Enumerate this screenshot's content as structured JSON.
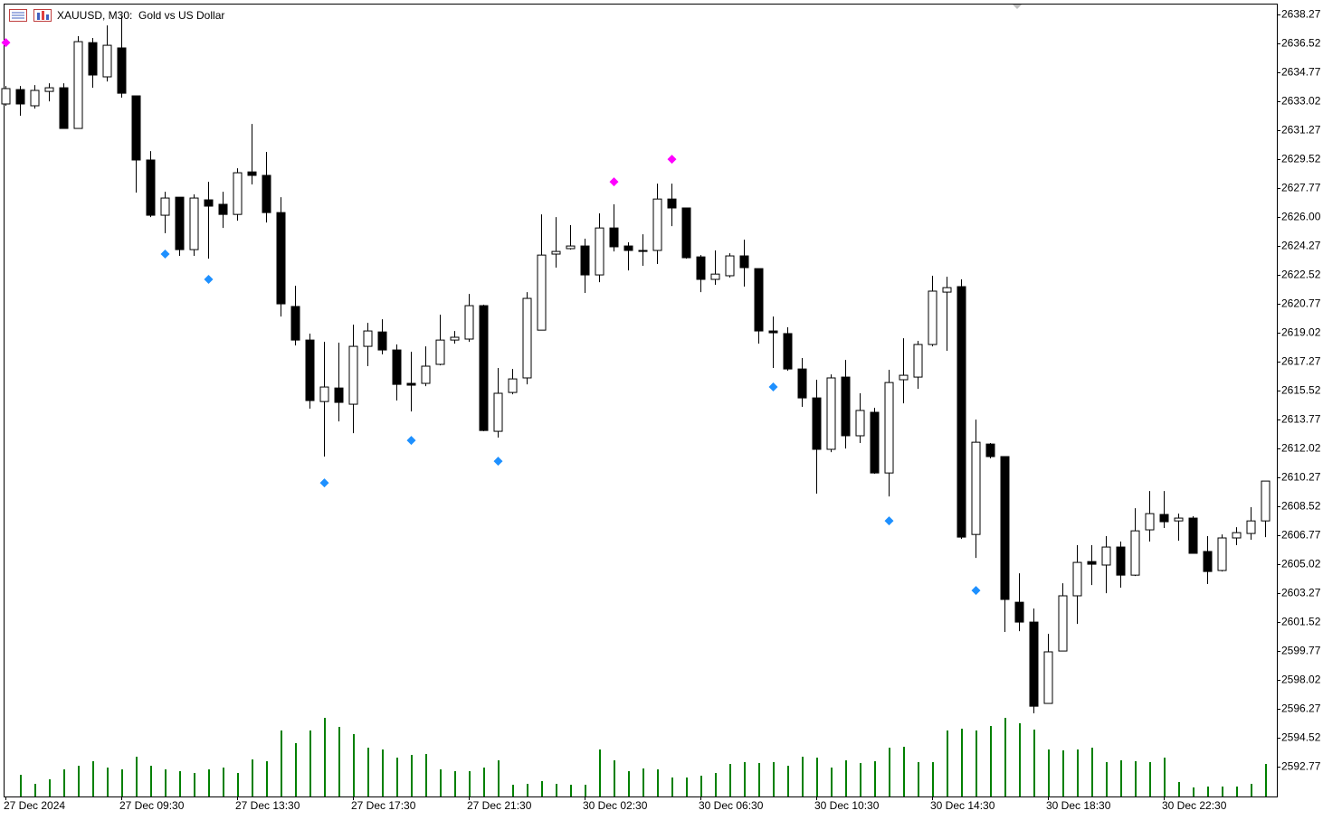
{
  "chart_data": {
    "type": "candlestick",
    "title": "XAUUSD, M30:",
    "subtitle": "Gold vs US Dollar",
    "categories": [
      "27 Dec 2024",
      null,
      null,
      null,
      null,
      null,
      null,
      null,
      "27 Dec 09:30",
      null,
      null,
      null,
      null,
      null,
      null,
      null,
      "27 Dec 13:30",
      null,
      null,
      null,
      null,
      null,
      null,
      null,
      "27 Dec 17:30",
      null,
      null,
      null,
      null,
      null,
      null,
      null,
      "27 Dec 21:30",
      null,
      null,
      null,
      null,
      null,
      null,
      null,
      "30 Dec 02:30",
      null,
      null,
      null,
      null,
      null,
      null,
      null,
      "30 Dec 06:30",
      null,
      null,
      null,
      null,
      null,
      null,
      null,
      "30 Dec 10:30",
      null,
      null,
      null,
      null,
      null,
      null,
      null,
      "30 Dec 14:30",
      null,
      null,
      null,
      null,
      null,
      null,
      null,
      "30 Dec 18:30",
      null,
      null,
      null,
      null,
      null,
      null,
      null,
      "30 Dec 22:30",
      null,
      null,
      null,
      null,
      null,
      null,
      null
    ],
    "open": [
      2632.86,
      2633.73,
      2632.75,
      2633.62,
      2633.84,
      2631.38,
      2636.57,
      2634.5,
      2636.25,
      2633.35,
      2629.47,
      2626.13,
      2627.22,
      2624.05,
      2627.06,
      2626.79,
      2626.18,
      2628.75,
      2628.54,
      2626.29,
      2620.61,
      2618.58,
      2614.86,
      2615.68,
      2614.7,
      2618.2,
      2619.07,
      2617.98,
      2615.96,
      2615.96,
      2617.11,
      2618.58,
      2618.64,
      2620.66,
      2613.06,
      2615.41,
      2616.29,
      2619.18,
      2623.78,
      2624.11,
      2624.27,
      2622.52,
      2625.36,
      2624.27,
      2624.0,
      2624.0,
      2627.11,
      2626.57,
      2623.61,
      2622.25,
      2622.47,
      2623.67,
      2622.9,
      2619.13,
      2618.97,
      2616.83,
      2615.08,
      2611.97,
      2616.34,
      2612.79,
      2614.21,
      2610.54,
      2616.18,
      2616.34,
      2618.31,
      2621.48,
      2621.81,
      2606.82,
      2612.29,
      2611.53,
      2602.72,
      2601.52,
      2596.6,
      2599.77,
      2603.11,
      2605.18,
      2604.97,
      2606.06,
      2604.36,
      2607.1,
      2608.03,
      2607.64,
      2607.81,
      2605.79,
      2604.64,
      2606.61,
      2606.88,
      2607.64
    ],
    "high": [
      2633.95,
      2633.95,
      2634.0,
      2634.11,
      2634.11,
      2636.96,
      2636.85,
      2637.61,
      2638.16,
      2633.35,
      2630.01,
      2627.55,
      2627.22,
      2627.39,
      2628.15,
      2627.55,
      2628.97,
      2631.65,
      2629.96,
      2627.22,
      2621.86,
      2618.97,
      2618.47,
      2618.42,
      2619.51,
      2619.62,
      2619.84,
      2618.31,
      2617.87,
      2618.2,
      2620.11,
      2619.13,
      2621.37,
      2620.72,
      2616.89,
      2616.83,
      2621.48,
      2626.18,
      2626.02,
      2625.53,
      2624.71,
      2626.24,
      2626.79,
      2624.49,
      2624.98,
      2628.04,
      2628.04,
      2626.57,
      2623.72,
      2624.0,
      2623.83,
      2624.65,
      2622.9,
      2620.0,
      2619.35,
      2617.49,
      2616.18,
      2616.5,
      2617.38,
      2615.36,
      2614.48,
      2616.78,
      2618.69,
      2618.53,
      2622.47,
      2622.41,
      2622.25,
      2613.77,
      2612.35,
      2611.53,
      2604.47,
      2602.34,
      2600.81,
      2603.87,
      2606.17,
      2606.17,
      2606.72,
      2606.39,
      2608.41,
      2609.45,
      2609.45,
      2608.08,
      2607.92,
      2606.72,
      2606.82,
      2607.26,
      2608.47,
      2610.05
    ],
    "low": [
      2632.75,
      2632.15,
      2632.58,
      2633.02,
      2631.38,
      2631.38,
      2633.84,
      2634.22,
      2633.24,
      2627.5,
      2626.02,
      2625.04,
      2623.67,
      2623.67,
      2623.5,
      2625.36,
      2625.8,
      2627.99,
      2625.69,
      2620.0,
      2618.25,
      2614.43,
      2611.53,
      2613.66,
      2612.95,
      2617.0,
      2617.71,
      2614.92,
      2614.26,
      2615.79,
      2617.05,
      2618.36,
      2618.47,
      2613.06,
      2612.68,
      2615.3,
      2615.9,
      2619.18,
      2622.96,
      2624.05,
      2621.43,
      2622.08,
      2623.94,
      2622.79,
      2623.07,
      2623.18,
      2625.47,
      2623.5,
      2621.48,
      2621.92,
      2622.36,
      2621.81,
      2618.36,
      2616.89,
      2616.72,
      2614.54,
      2609.29,
      2611.8,
      2612.02,
      2612.35,
      2610.49,
      2609.12,
      2614.75,
      2615.63,
      2618.2,
      2617.93,
      2606.55,
      2605.4,
      2611.42,
      2600.92,
      2600.97,
      2596.0,
      2596.6,
      2599.77,
      2601.41,
      2603.76,
      2603.27,
      2603.6,
      2604.31,
      2606.39,
      2607.21,
      2606.44,
      2605.68,
      2603.82,
      2604.58,
      2606.17,
      2606.5,
      2606.66
    ],
    "close": [
      2633.79,
      2632.86,
      2633.68,
      2633.84,
      2631.38,
      2636.63,
      2634.61,
      2636.41,
      2633.51,
      2629.47,
      2626.13,
      2627.17,
      2624.05,
      2627.17,
      2626.68,
      2626.18,
      2628.7,
      2628.54,
      2626.29,
      2620.77,
      2618.58,
      2614.92,
      2615.74,
      2614.81,
      2618.2,
      2619.13,
      2617.98,
      2615.9,
      2615.85,
      2617.0,
      2618.58,
      2618.75,
      2620.66,
      2613.11,
      2615.36,
      2616.23,
      2621.1,
      2623.72,
      2623.94,
      2624.27,
      2622.52,
      2625.36,
      2624.22,
      2624.0,
      2623.94,
      2627.11,
      2626.57,
      2623.56,
      2622.25,
      2622.57,
      2623.67,
      2622.96,
      2619.13,
      2619.02,
      2616.83,
      2615.08,
      2611.97,
      2616.29,
      2612.79,
      2614.32,
      2610.54,
      2616.01,
      2616.45,
      2618.31,
      2621.54,
      2621.75,
      2606.66,
      2612.4,
      2611.53,
      2602.89,
      2601.52,
      2596.43,
      2599.72,
      2603.11,
      2605.13,
      2605.02,
      2606.06,
      2604.36,
      2607.04,
      2608.08,
      2607.59,
      2607.81,
      2605.68,
      2604.58,
      2606.61,
      2606.93,
      2607.64,
      2610.05
    ],
    "up_color": "#ffffff",
    "down_color": "#000000",
    "fractal_high": {
      "color": "#ff00ff",
      "values": [
        2636.57,
        null,
        null,
        null,
        null,
        null,
        null,
        null,
        null,
        null,
        null,
        null,
        null,
        null,
        null,
        null,
        null,
        null,
        null,
        null,
        null,
        null,
        null,
        null,
        null,
        null,
        null,
        null,
        null,
        null,
        null,
        null,
        null,
        null,
        null,
        null,
        null,
        null,
        null,
        null,
        null,
        null,
        2628.15,
        null,
        null,
        null,
        2629.52,
        null,
        null,
        null,
        null,
        null,
        null,
        null,
        null,
        null,
        null,
        null,
        null,
        null,
        null,
        null,
        null,
        null,
        null,
        null,
        null,
        null,
        null,
        null,
        null,
        null,
        null,
        null,
        null,
        null,
        null,
        null,
        null,
        null,
        null,
        null,
        null,
        null,
        null,
        null,
        null,
        null
      ]
    },
    "fractal_low": {
      "color": "#1e90ff",
      "values": [
        null,
        null,
        null,
        null,
        null,
        null,
        null,
        null,
        null,
        null,
        null,
        2623.78,
        null,
        null,
        2622.25,
        null,
        null,
        null,
        null,
        null,
        null,
        null,
        2609.94,
        null,
        null,
        null,
        null,
        null,
        2612.51,
        null,
        null,
        null,
        null,
        null,
        2611.25,
        null,
        null,
        null,
        null,
        null,
        null,
        null,
        null,
        null,
        null,
        null,
        null,
        null,
        null,
        null,
        null,
        null,
        null,
        2615.74,
        null,
        null,
        null,
        null,
        null,
        null,
        null,
        2607.64,
        null,
        null,
        null,
        null,
        null,
        2603.43,
        null,
        null,
        null,
        null,
        null,
        null,
        null,
        null,
        null,
        null,
        null,
        null,
        null,
        null,
        null,
        null,
        null,
        null,
        null,
        null
      ]
    },
    "volume": {
      "color": "#008000",
      "values": [
        null,
        24,
        14,
        19,
        30,
        34,
        39,
        32,
        30,
        44,
        34,
        30,
        28,
        26,
        30,
        32,
        26,
        41,
        39,
        73,
        59,
        73,
        87,
        77,
        69,
        54,
        52,
        43,
        46,
        47,
        30,
        28,
        28,
        32,
        40,
        13,
        14,
        17,
        14,
        13,
        13,
        52,
        40,
        28,
        31,
        30,
        21,
        21,
        23,
        26,
        36,
        38,
        37,
        38,
        34,
        44,
        43,
        32,
        40,
        37,
        39,
        54,
        55,
        38,
        38,
        73,
        75,
        73,
        78,
        87,
        81,
        74,
        52,
        51,
        52,
        54,
        38,
        40,
        39,
        38,
        43,
        16,
        10,
        11,
        11,
        11,
        14,
        36
      ]
    },
    "ylim": [
      2590.97,
      2638.93
    ],
    "yticks": [
      2638.27,
      2636.52,
      2634.77,
      2633.02,
      2631.27,
      2629.52,
      2627.77,
      {
        "value": 2626,
        "label": "2626.00"
      },
      2624.27,
      2622.52,
      2620.77,
      2619.02,
      2617.27,
      2615.52,
      2613.77,
      2612.02,
      2610.27,
      2608.52,
      2606.77,
      2605.02,
      2603.27,
      2601.52,
      2599.77,
      2598.02,
      2596.27,
      2594.52,
      2592.77
    ]
  }
}
